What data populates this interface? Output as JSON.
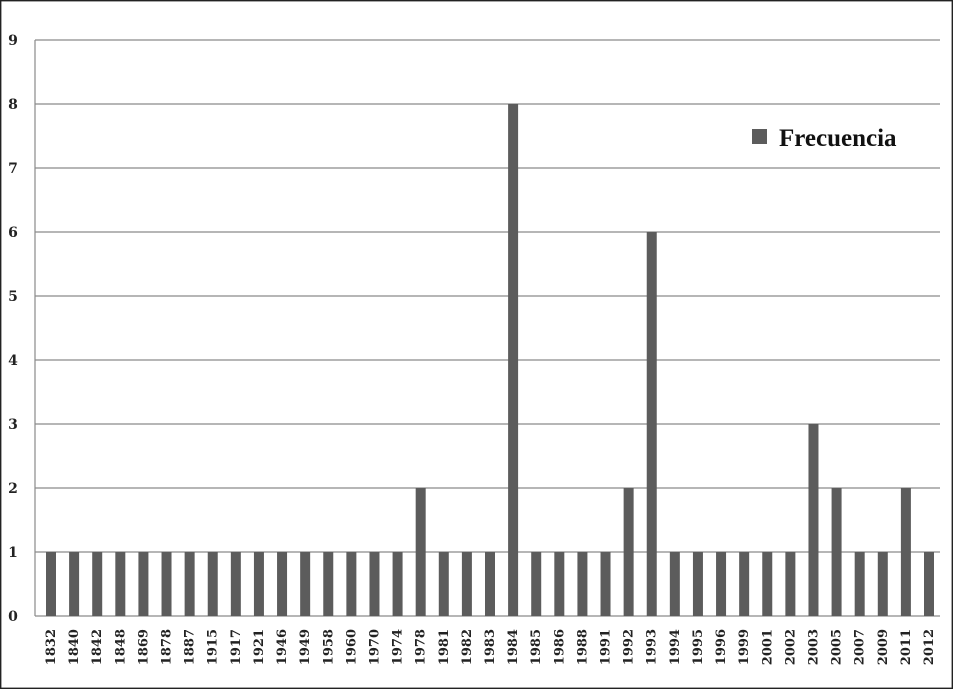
{
  "chart_data": {
    "type": "bar",
    "title": "",
    "xlabel": "",
    "ylabel": "",
    "ylim": [
      0,
      9
    ],
    "yticks": [
      "0",
      "1",
      "2",
      "3",
      "4",
      "5",
      "6",
      "7",
      "8",
      "9"
    ],
    "grid": true,
    "legend_position": "top-right",
    "categories": [
      "1832",
      "1840",
      "1842",
      "1848",
      "1869",
      "1878",
      "1887",
      "1915",
      "1917",
      "1921",
      "1946",
      "1949",
      "1958",
      "1960",
      "1970",
      "1974",
      "1978",
      "1981",
      "1982",
      "1983",
      "1984",
      "1985",
      "1986",
      "1988",
      "1991",
      "1992",
      "1993",
      "1994",
      "1995",
      "1996",
      "1999",
      "2001",
      "2002",
      "2003",
      "2005",
      "2007",
      "2009",
      "2011",
      "2012"
    ],
    "series": [
      {
        "name": "Frecuencia",
        "color": "#5c5c5c",
        "values": [
          1,
          1,
          1,
          1,
          1,
          1,
          1,
          1,
          1,
          1,
          1,
          1,
          1,
          1,
          1,
          1,
          2,
          1,
          1,
          1,
          8,
          1,
          1,
          1,
          1,
          2,
          6,
          1,
          1,
          1,
          1,
          1,
          1,
          3,
          2,
          1,
          1,
          2,
          1
        ]
      }
    ]
  }
}
